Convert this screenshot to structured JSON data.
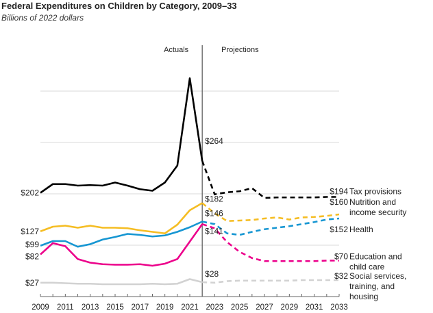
{
  "chart_data": {
    "type": "line",
    "title": "Federal Expenditures on Children by Category, 2009–33",
    "subtitle": "Billions of 2022 dollars",
    "xlabel": "",
    "ylabel": "",
    "ylim": [
      0,
      430
    ],
    "gridlines": [
      100,
      200,
      300,
      400
    ],
    "x": [
      2009,
      2010,
      2011,
      2012,
      2013,
      2014,
      2015,
      2016,
      2017,
      2018,
      2019,
      2020,
      2021,
      2022,
      2023,
      2024,
      2025,
      2026,
      2027,
      2028,
      2029,
      2030,
      2031,
      2032,
      2033
    ],
    "x_ticks": [
      "2009",
      "2011",
      "2013",
      "2015",
      "2017",
      "2019",
      "2021",
      "2023",
      "2025",
      "2027",
      "2029",
      "2031",
      "2033"
    ],
    "actual_end_year": 2022,
    "annotations": {
      "actuals": "Actuals",
      "projections": "Projections"
    },
    "series": [
      {
        "name": "Tax provisions",
        "color": "#000000",
        "start_label": "$202",
        "mid_label": "$264",
        "end_label": "$194",
        "values": [
          202,
          219,
          219,
          216,
          217,
          216,
          222,
          216,
          209,
          206,
          222,
          255,
          425,
          264,
          199,
          203,
          205,
          211,
          192,
          193,
          193,
          193,
          193,
          194,
          194
        ]
      },
      {
        "name": "Nutrition and income security",
        "name_lines": [
          "Nutrition and",
          "income security"
        ],
        "color": "#f5bd23",
        "start_label": "$127",
        "mid_label": "$182",
        "end_label": "$160",
        "values": [
          127,
          136,
          138,
          134,
          138,
          134,
          134,
          133,
          129,
          126,
          123,
          140,
          168,
          182,
          162,
          147,
          148,
          149,
          152,
          154,
          150,
          154,
          155,
          157,
          160
        ]
      },
      {
        "name": "Health",
        "color": "#1696d2",
        "start_label": "$99",
        "mid_label": "$146",
        "end_label": "$152",
        "values": [
          99,
          108,
          108,
          97,
          102,
          111,
          116,
          122,
          120,
          117,
          119,
          126,
          135,
          146,
          141,
          123,
          120,
          126,
          131,
          134,
          137,
          141,
          145,
          150,
          152
        ]
      },
      {
        "name": "Education and child care",
        "name_lines": [
          "Education and",
          "child care"
        ],
        "color": "#ec008b",
        "start_label": "$82",
        "mid_label": "$141",
        "end_label": "$70",
        "values": [
          82,
          104,
          98,
          73,
          66,
          63,
          62,
          62,
          63,
          60,
          64,
          73,
          107,
          141,
          133,
          106,
          87,
          75,
          69,
          69,
          69,
          69,
          69,
          70,
          70
        ]
      },
      {
        "name": "Social services, training, and housing",
        "name_lines": [
          "Social services,",
          "training, and",
          "housing"
        ],
        "color": "#d2d2d2",
        "start_label": "$27",
        "mid_label": "$28",
        "end_label": "$32",
        "values": [
          27,
          27,
          26,
          25,
          25,
          24,
          24,
          24,
          24,
          25,
          24,
          25,
          34,
          28,
          27,
          30,
          31,
          31,
          31,
          31,
          31,
          32,
          32,
          32,
          32
        ]
      }
    ]
  }
}
